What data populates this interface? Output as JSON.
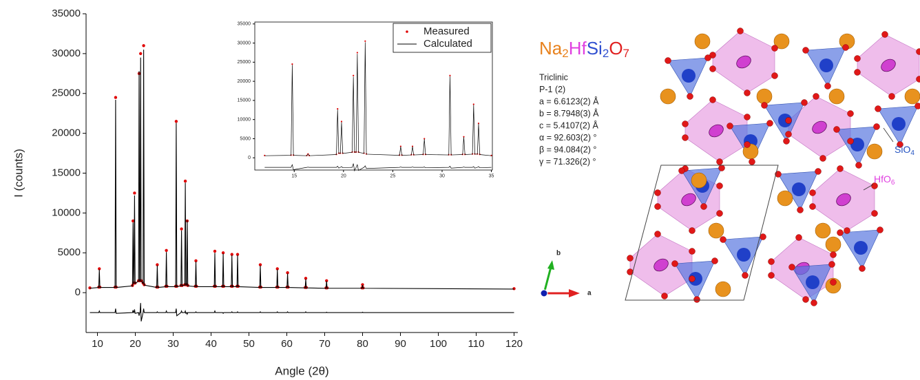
{
  "chart_data": [
    {
      "type": "line",
      "xlabel": "Angle (2θ)",
      "ylabel": "I (counts)",
      "xlim": [
        7,
        121
      ],
      "ylim": [
        -5000,
        35000
      ],
      "xticks": [
        10,
        20,
        30,
        40,
        50,
        60,
        70,
        80,
        90,
        100,
        110,
        120
      ],
      "yticks": [
        0,
        5000,
        10000,
        15000,
        20000,
        25000,
        30000,
        35000
      ],
      "box": false,
      "x": [
        8,
        10.35,
        10.5,
        10.65,
        14.65,
        14.8,
        14.95,
        19.25,
        19.4,
        19.55,
        19.65,
        19.8,
        19.95,
        20.85,
        21.0,
        21.15,
        21.25,
        21.4,
        21.55,
        22.05,
        22.2,
        22.35,
        25.65,
        25.8,
        25.95,
        28.05,
        28.2,
        28.35,
        30.65,
        30.8,
        30.95,
        32.05,
        32.2,
        32.35,
        33.05,
        33.2,
        33.35,
        33.55,
        33.7,
        33.85,
        35.85,
        36.0,
        36.15,
        40.85,
        41.0,
        41.15,
        43.05,
        43.2,
        43.35,
        45.35,
        45.5,
        45.65,
        46.85,
        47.0,
        47.15,
        52.85,
        53.0,
        53.15,
        57.35,
        57.5,
        57.65,
        60.05,
        60.2,
        60.35,
        64.85,
        65.0,
        65.15,
        70.35,
        70.5,
        70.65,
        79.85,
        80.0,
        80.15,
        120
      ],
      "series": [
        {
          "marker": "dot",
          "color": "#e00000",
          "values": [
            600,
            700,
            3000,
            700,
            700,
            24500,
            700,
            900,
            9000,
            1200,
            1200,
            12500,
            1200,
            1500,
            27500,
            1500,
            1500,
            30000,
            1500,
            1200,
            31000,
            1000,
            700,
            3500,
            700,
            800,
            5300,
            800,
            800,
            21500,
            800,
            900,
            8000,
            900,
            1000,
            14000,
            1000,
            1000,
            9000,
            900,
            800,
            4000,
            800,
            800,
            5200,
            800,
            800,
            5000,
            800,
            800,
            4800,
            800,
            800,
            4800,
            800,
            700,
            3500,
            700,
            700,
            3000,
            700,
            700,
            2500,
            700,
            650,
            1800,
            650,
            600,
            1500,
            600,
            600,
            1000,
            600,
            500
          ]
        },
        {
          "marker": "line",
          "color": "#000000",
          "values": [
            550,
            650,
            2900,
            650,
            650,
            24200,
            650,
            850,
            8800,
            1150,
            1150,
            12200,
            1150,
            1450,
            27800,
            1450,
            1450,
            29500,
            1450,
            1150,
            30500,
            950,
            650,
            3400,
            650,
            750,
            5100,
            750,
            750,
            21300,
            750,
            850,
            7800,
            850,
            950,
            13800,
            950,
            950,
            9100,
            850,
            750,
            3900,
            750,
            750,
            5000,
            750,
            750,
            4900,
            750,
            750,
            4700,
            750,
            750,
            4700,
            750,
            650,
            3400,
            650,
            650,
            2900,
            650,
            650,
            2400,
            650,
            600,
            1700,
            600,
            550,
            1450,
            550,
            550,
            950,
            550,
            450
          ]
        },
        {
          "marker": "line",
          "color": "#000000",
          "values": [
            -2500,
            -2500,
            -2300,
            -2500,
            -2500,
            -2000,
            -2600,
            -2500,
            -2200,
            -2500,
            -2500,
            -2100,
            -2600,
            -2500,
            -2900,
            -2500,
            -2500,
            -1300,
            -3600,
            -2500,
            -2000,
            -2500,
            -2500,
            -2400,
            -2500,
            -2500,
            -2300,
            -2500,
            -2500,
            -2000,
            -2900,
            -2500,
            -2300,
            -2500,
            -2500,
            -2300,
            -2600,
            -2500,
            -2700,
            -2500,
            -2500,
            -2400,
            -2500,
            -2500,
            -2300,
            -2500,
            -2500,
            -2600,
            -2500,
            -2500,
            -2400,
            -2500,
            -2500,
            -2400,
            -2500,
            -2500,
            -2400,
            -2500,
            -2500,
            -2400,
            -2500,
            -2500,
            -2400,
            -2500,
            -2500,
            -2400,
            -2500,
            -2500,
            -2450,
            -2500,
            -2500,
            -2450,
            -2500,
            -2500
          ]
        }
      ]
    },
    {
      "type": "line",
      "xlim": [
        11,
        35.1
      ],
      "ylim": [
        -3200,
        35500
      ],
      "xticks": [
        15,
        20,
        25,
        30,
        35
      ],
      "yticks": [
        0,
        5000,
        10000,
        15000,
        20000,
        25000,
        30000,
        35000
      ],
      "box": true,
      "legend": "upper right",
      "x": [
        12,
        14.68,
        14.8,
        14.92,
        16.28,
        16.4,
        16.52,
        19.28,
        19.4,
        19.52,
        19.68,
        19.8,
        19.92,
        20.88,
        21.0,
        21.12,
        21.28,
        21.4,
        21.52,
        22.08,
        22.2,
        22.32,
        25.68,
        25.8,
        25.92,
        26.88,
        27.0,
        27.12,
        28.08,
        28.2,
        28.32,
        30.68,
        30.8,
        30.92,
        32.08,
        32.2,
        32.32,
        33.08,
        33.2,
        33.32,
        33.58,
        33.7,
        33.82,
        35
      ],
      "series": [
        {
          "name": "Measured",
          "marker": "dot",
          "color": "#e00000",
          "values": [
            600,
            700,
            24500,
            700,
            600,
            1000,
            600,
            900,
            12800,
            1200,
            1200,
            9500,
            1200,
            1500,
            21500,
            1500,
            1500,
            27500,
            1500,
            1200,
            30500,
            1000,
            700,
            3000,
            700,
            800,
            3000,
            800,
            900,
            5000,
            900,
            800,
            21500,
            800,
            900,
            5500,
            900,
            1000,
            14000,
            1000,
            1000,
            9000,
            900,
            600
          ]
        },
        {
          "name": "Calculated",
          "marker": "line",
          "color": "#000000",
          "values": [
            550,
            650,
            24300,
            650,
            550,
            950,
            550,
            850,
            12600,
            1150,
            1150,
            9300,
            1150,
            1450,
            21200,
            1450,
            1450,
            27200,
            1450,
            1150,
            30200,
            950,
            650,
            2900,
            650,
            750,
            2900,
            750,
            850,
            4900,
            850,
            750,
            21300,
            750,
            850,
            5400,
            850,
            950,
            13800,
            950,
            950,
            8900,
            850,
            550
          ]
        },
        {
          "marker": "line",
          "color": "#000000",
          "values": [
            -2500,
            -2500,
            -1800,
            -3100,
            -2500,
            -2450,
            -2500,
            -2500,
            -2200,
            -2700,
            -2500,
            -2300,
            -2600,
            -2500,
            -1500,
            -3400,
            -2500,
            -1800,
            -3300,
            -2500,
            -2100,
            -2800,
            -2500,
            -2400,
            -2500,
            -2500,
            -2400,
            -2500,
            -2500,
            -2400,
            -2600,
            -2500,
            -2200,
            -2700,
            -2500,
            -2400,
            -2500,
            -2500,
            -2300,
            -2700,
            -2500,
            -2300,
            -2600,
            -2500
          ]
        }
      ]
    }
  ],
  "structure": {
    "formula": [
      {
        "text": "Na",
        "color": "#e8821e"
      },
      {
        "text": "2",
        "color": "#e8821e",
        "sub": true
      },
      {
        "text": "Hf",
        "color": "#e040e0"
      },
      {
        "text": "Si",
        "color": "#3050d0"
      },
      {
        "text": "2",
        "color": "#3050d0",
        "sub": true
      },
      {
        "text": "O",
        "color": "#e02020"
      },
      {
        "text": "7",
        "color": "#e02020",
        "sub": true
      }
    ],
    "params": [
      "Triclinic",
      "P-1 (2)",
      "a = 6.6123(2) Å",
      "b = 8.7948(3) Å",
      "c = 5.4107(2) Å",
      "α = 92.603(2) °",
      "β = 94.084(2) °",
      "γ = 71.326(2) °"
    ],
    "axes": [
      "a",
      "b"
    ],
    "labels": [
      {
        "text": "SiO",
        "sub": "4",
        "color": "#2050c0"
      },
      {
        "text": "HfO",
        "sub": "6",
        "color": "#e040e0"
      }
    ]
  }
}
